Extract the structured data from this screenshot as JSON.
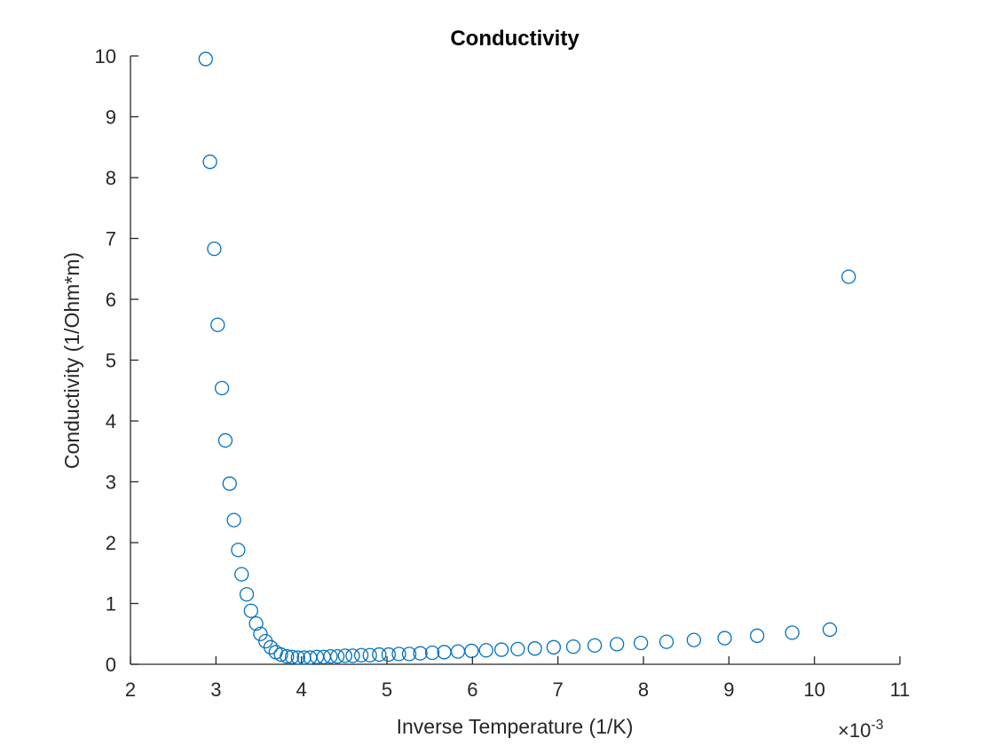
{
  "chart_data": {
    "type": "scatter",
    "title": "Conductivity",
    "xlabel": "Inverse Temperature (1/K)",
    "ylabel": "Conductivity (1/Ohm*m)",
    "x_exponent_base": "×10",
    "x_exponent": "-3",
    "xlim": [
      2,
      11
    ],
    "ylim": [
      0,
      10
    ],
    "xticks": [
      "2",
      "3",
      "4",
      "5",
      "6",
      "7",
      "8",
      "9",
      "10",
      "11"
    ],
    "yticks": [
      "0",
      "1",
      "2",
      "3",
      "4",
      "5",
      "6",
      "7",
      "8",
      "9",
      "10"
    ],
    "x_unit_note": "x values shown in units of 10^-3 1/K, matching the tick labels",
    "grid": false,
    "marker": "open-circle",
    "color": "#0072BD",
    "series": [
      {
        "x": [
          2.88,
          2.93,
          2.98,
          3.02,
          3.07,
          3.11,
          3.16,
          3.21,
          3.26,
          3.3,
          3.36,
          3.41,
          3.47,
          3.52,
          3.58,
          3.64,
          3.7,
          3.76,
          3.83,
          3.89,
          3.96,
          4.03,
          4.1,
          4.18,
          4.26,
          4.34,
          4.42,
          4.51,
          4.6,
          4.7,
          4.8,
          4.91,
          5.02,
          5.14,
          5.26,
          5.39,
          5.53,
          5.67,
          5.83,
          5.99,
          6.16,
          6.34,
          6.53,
          6.73,
          6.95,
          7.18,
          7.43,
          7.69,
          7.97,
          8.27,
          8.59,
          8.95,
          9.33,
          9.74,
          10.18
        ],
        "y": [
          9.95,
          8.26,
          6.83,
          5.58,
          4.54,
          3.68,
          2.97,
          2.37,
          1.88,
          1.48,
          1.15,
          0.88,
          0.67,
          0.5,
          0.38,
          0.28,
          0.2,
          0.16,
          0.13,
          0.12,
          0.11,
          0.11,
          0.11,
          0.12,
          0.12,
          0.13,
          0.13,
          0.14,
          0.14,
          0.15,
          0.15,
          0.16,
          0.16,
          0.17,
          0.17,
          0.18,
          0.19,
          0.2,
          0.21,
          0.22,
          0.23,
          0.24,
          0.25,
          0.26,
          0.28,
          0.29,
          0.31,
          0.33,
          0.35,
          0.37,
          0.4,
          0.43,
          0.47,
          0.52,
          0.57
        ]
      },
      {
        "x": [
          10.4
        ],
        "y": [
          6.37
        ]
      }
    ]
  }
}
